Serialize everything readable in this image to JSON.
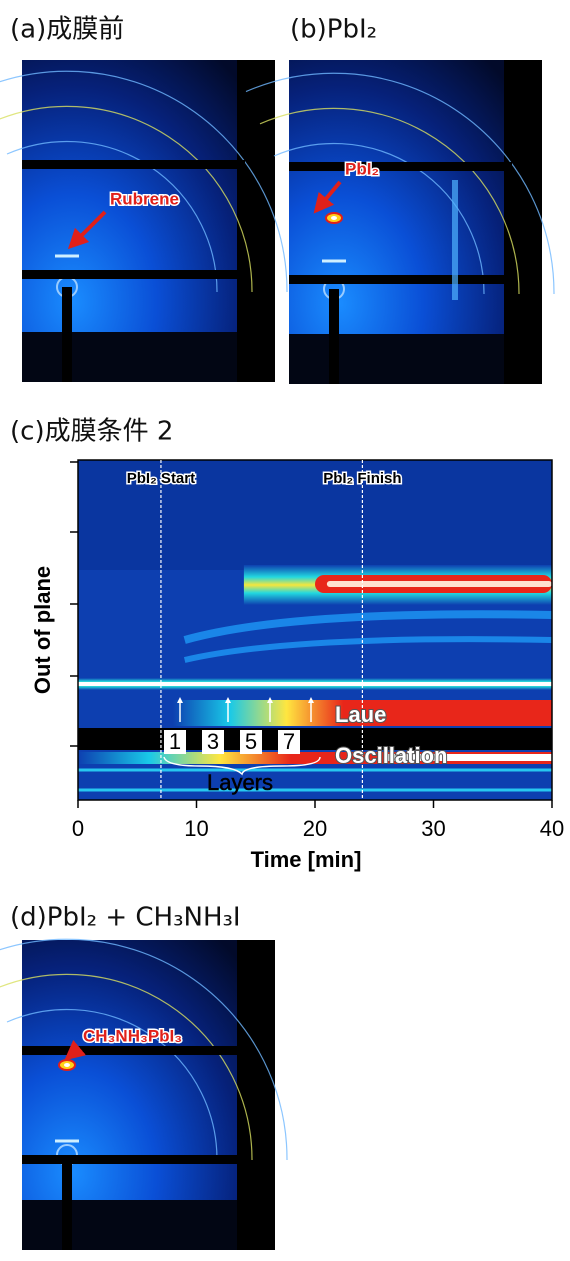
{
  "panel_a": {
    "label": "(a)成膜前",
    "annotation": "Rubrene"
  },
  "panel_b": {
    "label": "(b)PbI₂",
    "annotation": "PbI₂"
  },
  "panel_c": {
    "label": "(c)成膜条件 2",
    "type": "heatmap",
    "xlabel": "Time [min]",
    "ylabel": "Out of plane",
    "xlim": [
      0,
      40
    ],
    "xticks": [
      0,
      10,
      20,
      30,
      40
    ],
    "events": [
      {
        "x": 7,
        "label": "PbI₂ Start"
      },
      {
        "x": 24,
        "label": "PbI₂ Finish"
      }
    ],
    "layer_numbers": [
      1,
      3,
      5,
      7
    ],
    "annotations": [
      "Laue",
      "Oscillation"
    ],
    "bracket_label": "Layers"
  },
  "panel_d": {
    "label": "(d)PbI₂ + CH₃NH₃I",
    "annotation": "CH₃NH₃PbI₃"
  }
}
